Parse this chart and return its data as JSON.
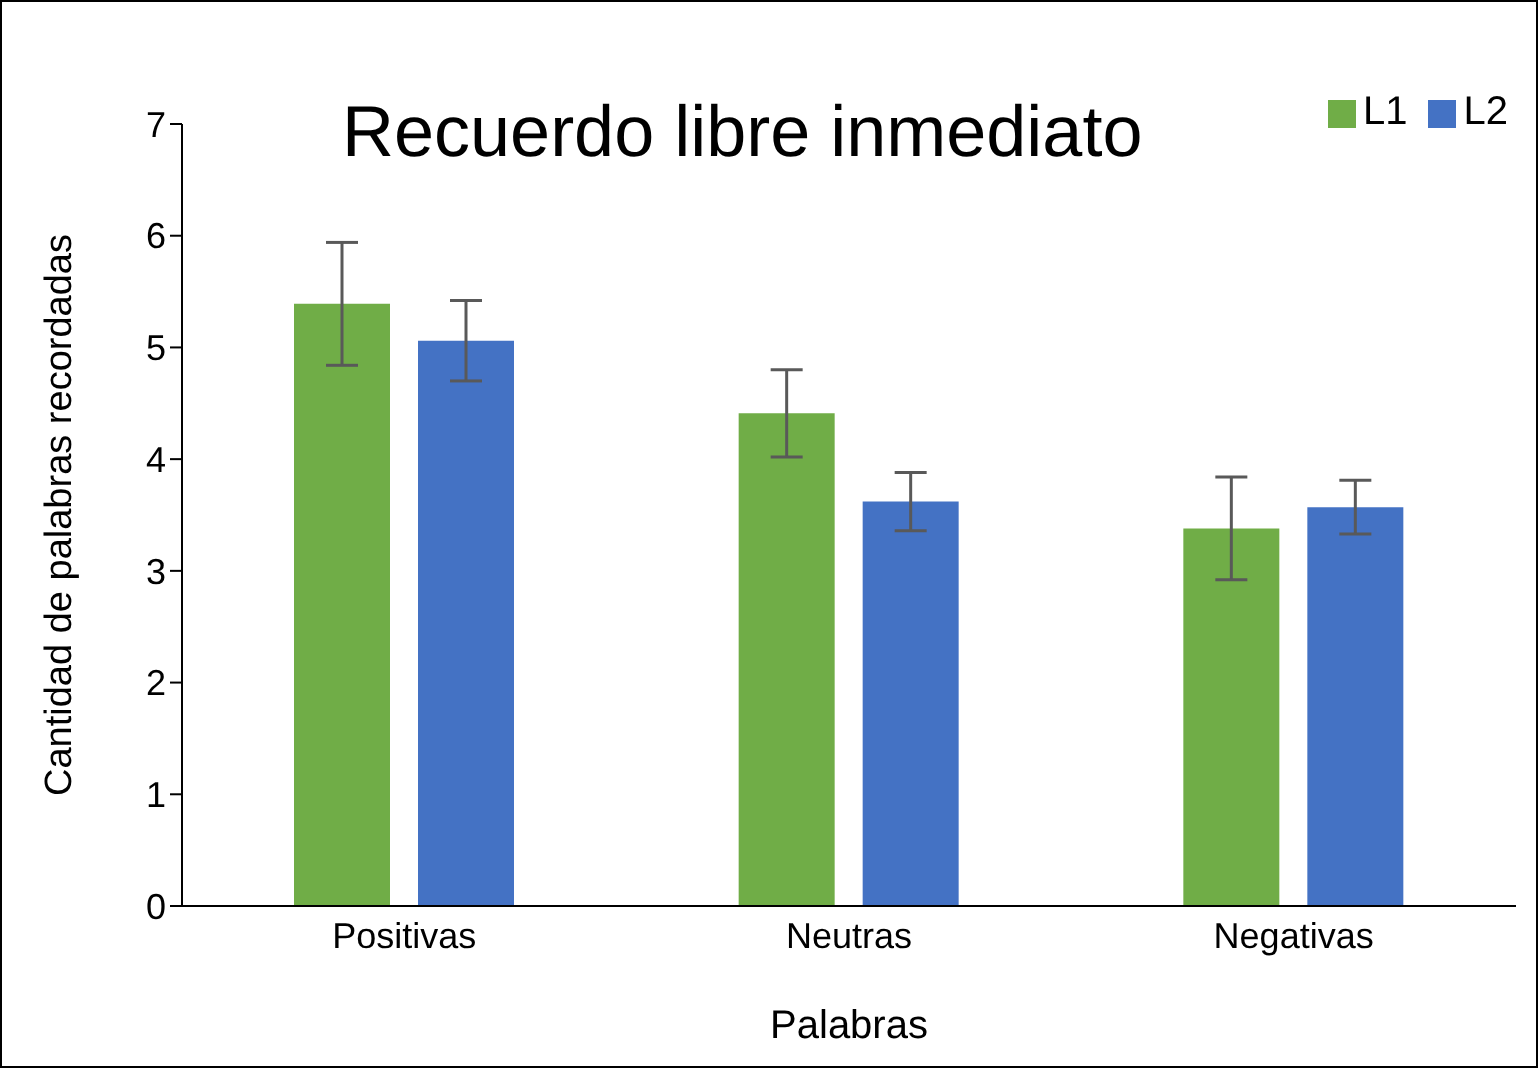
{
  "chart_data": {
    "type": "bar",
    "title": "Recuerdo libre inmediato",
    "xlabel": "Palabras",
    "ylabel": "Cantidad de palabras recordadas",
    "categories": [
      "Positivas",
      "Neutras",
      "Negativas"
    ],
    "series": [
      {
        "name": "L1",
        "color": "#70ad47",
        "values": [
          5.39,
          4.41,
          3.38
        ],
        "errors": [
          0.55,
          0.39,
          0.46
        ]
      },
      {
        "name": "L2",
        "color": "#4472c4",
        "values": [
          5.06,
          3.62,
          3.57
        ],
        "errors": [
          0.36,
          0.26,
          0.24
        ]
      }
    ],
    "ylim": [
      0,
      7
    ],
    "yticks": [
      0,
      1,
      2,
      3,
      4,
      5,
      6,
      7
    ],
    "legend": "top right"
  }
}
